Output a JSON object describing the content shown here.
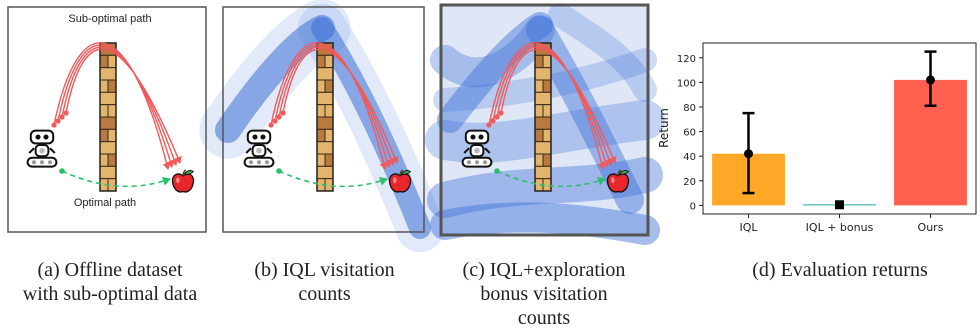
{
  "panels": {
    "a": {
      "caption_lines": [
        "(a) Offline dataset",
        "with sub-optimal data"
      ],
      "top_label": "Sub-optimal path",
      "bottom_label": "Optimal path"
    },
    "b": {
      "caption_lines": [
        "(b) IQL visitation",
        "counts"
      ]
    },
    "c": {
      "caption_lines": [
        "(c) IQL+exploration",
        "bonus visitation",
        "counts"
      ]
    },
    "d": {
      "caption_lines": [
        "(d) Evaluation returns"
      ]
    }
  },
  "colors": {
    "arrow": "#f05a5a",
    "optimal": "#2bbf6b",
    "heat": "#3b6fd6",
    "wall_light": "#e3b46c",
    "wall_dark": "#b87a3e"
  },
  "chart_data": {
    "type": "bar",
    "ylabel": "Return",
    "ylim": [
      -7,
      132
    ],
    "yticks": [
      0,
      20,
      40,
      60,
      80,
      100,
      120
    ],
    "categories": [
      "IQL",
      "IQL + bonus",
      "Ours"
    ],
    "values": [
      42,
      0.5,
      102
    ],
    "error_low": [
      10,
      0.5,
      81
    ],
    "error_high": [
      75,
      0.5,
      125
    ],
    "colors": [
      "#ffa726",
      "#26a69a",
      "#ff6050"
    ],
    "grid": false
  }
}
